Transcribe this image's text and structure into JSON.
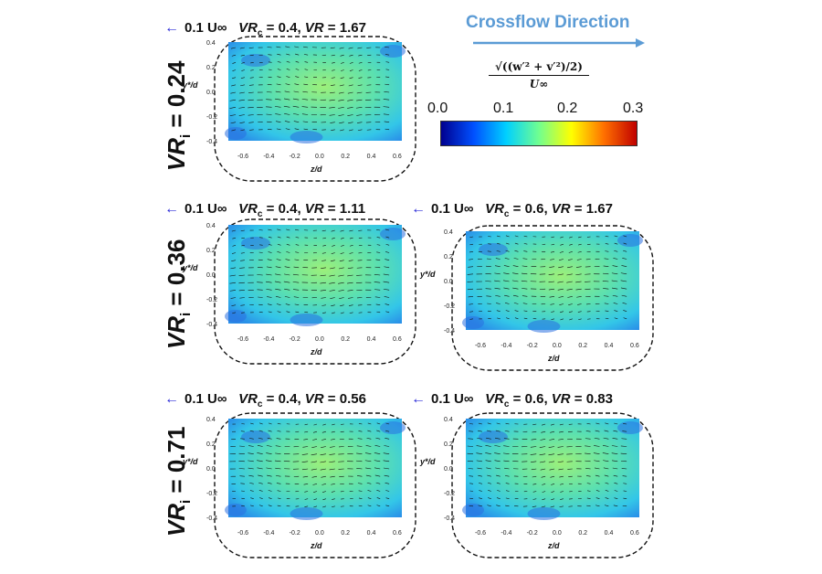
{
  "title": "Crossflow Direction",
  "reference_vector": "0.1 U∞",
  "rows": [
    {
      "label_main": "VR",
      "label_sub": "i",
      "label_value": " = 0.24"
    },
    {
      "label_main": "VR",
      "label_sub": "i",
      "label_value": " = 0.36"
    },
    {
      "label_main": "VR",
      "label_sub": "i",
      "label_value": " = 0.71"
    }
  ],
  "panels": [
    {
      "vrc": "0.4",
      "vr": "1.67"
    },
    {
      "vrc": "0.4",
      "vr": "1.11"
    },
    {
      "vrc": "0.6",
      "vr": "1.67"
    },
    {
      "vrc": "0.4",
      "vr": "0.56"
    },
    {
      "vrc": "0.6",
      "vr": "0.83"
    }
  ],
  "axes": {
    "xlabel": "z/d",
    "ylabel": "y*/d",
    "xticks": [
      "-0.6",
      "-0.4",
      "-0.2",
      "0.0",
      "0.2",
      "0.4",
      "0.6"
    ],
    "yticks": [
      "0.4",
      "0.2",
      "0.0",
      "-0.2",
      "-0.4"
    ]
  },
  "colorbar": {
    "label_num": "√((w′² + v′²)/2)",
    "label_den": "U∞",
    "ticks": [
      "0.0",
      "0.1",
      "0.2",
      "0.3"
    ],
    "colors": [
      "#00008f",
      "#0050ff",
      "#00d0ff",
      "#70ff90",
      "#ffff00",
      "#ff7000",
      "#c00000"
    ]
  }
}
